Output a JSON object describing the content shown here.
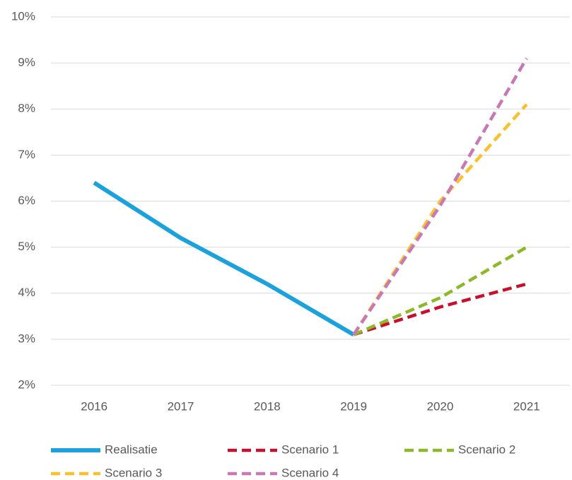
{
  "chart_data": {
    "type": "line",
    "categories": [
      "2016",
      "2017",
      "2018",
      "2019",
      "2020",
      "2021"
    ],
    "series": [
      {
        "name": "Realisatie",
        "color": "#1ba1dc",
        "line_style": "solid",
        "values": [
          6.4,
          5.2,
          4.2,
          3.1,
          null,
          null
        ]
      },
      {
        "name": "Scenario 1",
        "color": "#c8102e",
        "line_style": "dashed",
        "values": [
          null,
          null,
          null,
          3.1,
          3.7,
          4.2
        ]
      },
      {
        "name": "Scenario 2",
        "color": "#8db82a",
        "line_style": "dashed",
        "values": [
          null,
          null,
          null,
          3.1,
          3.9,
          5.0
        ]
      },
      {
        "name": "Scenario 3",
        "color": "#fbc02d",
        "line_style": "dashed",
        "values": [
          null,
          null,
          null,
          3.1,
          6.0,
          8.1
        ]
      },
      {
        "name": "Scenario 4",
        "color": "#c878b4",
        "line_style": "dashed",
        "values": [
          null,
          null,
          null,
          3.1,
          5.9,
          9.1
        ]
      }
    ],
    "ylim": [
      2,
      10
    ],
    "yticks": [
      {
        "value": 2,
        "label": "2%"
      },
      {
        "value": 3,
        "label": "3%"
      },
      {
        "value": 4,
        "label": "4%"
      },
      {
        "value": 5,
        "label": "5%"
      },
      {
        "value": 6,
        "label": "6%"
      },
      {
        "value": 7,
        "label": "7%"
      },
      {
        "value": 8,
        "label": "8%"
      },
      {
        "value": 9,
        "label": "9%"
      },
      {
        "value": 10,
        "label": "10%"
      }
    ],
    "grid": true,
    "legend": "bottom"
  }
}
